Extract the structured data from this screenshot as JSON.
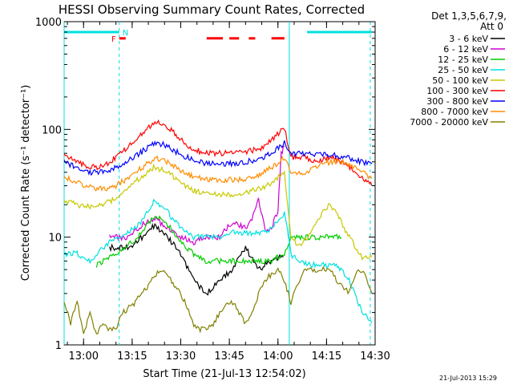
{
  "chart_data": {
    "type": "line",
    "title": "HESSI Observing Summary Count Rates, Corrected",
    "xlabel": "Start Time (21-Jul-13 12:54:02)",
    "ylabel": "Corrected Count Rate (s⁻¹ detector⁻¹)",
    "y_scale": "log",
    "ylim": [
      1,
      1000
    ],
    "x_unit": "minutes after 12:54:02",
    "xlim": [
      0,
      96
    ],
    "x_tick_labels": [
      "13:00",
      "13:15",
      "13:30",
      "13:45",
      "14:00",
      "14:15",
      "14:30"
    ],
    "y_tick_labels": [
      "1",
      "10",
      "100",
      "1000"
    ],
    "grid": false,
    "legend_placement": "right",
    "legend_header": [
      "Det 1,3,5,6,7,9,",
      "Att 0"
    ],
    "timestamp": "21-Jul-2013 15:29",
    "annotations": {
      "flag_F": "F",
      "flag_N": "N"
    },
    "series": [
      {
        "name": "3 - 6 keV",
        "color": "#000000",
        "x": [
          3,
          8,
          14,
          20,
          24,
          28,
          32,
          36,
          40,
          44,
          48,
          52,
          56,
          60,
          64,
          68,
          70,
          74,
          78,
          82,
          86,
          88,
          92,
          95
        ],
        "y": [
          null,
          null,
          8,
          8,
          10,
          13,
          10,
          7,
          4,
          3,
          4,
          5,
          8,
          5,
          6,
          7,
          null,
          null,
          null,
          null,
          null,
          null,
          null,
          null
        ]
      },
      {
        "name": "6 - 12 keV",
        "color": "#d000d0",
        "x": [
          14,
          20,
          24,
          28,
          32,
          36,
          40,
          44,
          48,
          52,
          56,
          58,
          60,
          62,
          64,
          66,
          67,
          68
        ],
        "y": [
          10,
          10,
          13,
          15,
          12,
          10,
          9,
          10,
          10,
          14,
          12,
          15,
          22,
          12,
          12,
          18,
          60,
          70
        ]
      },
      {
        "name": "12 - 25 keV",
        "color": "#00cc00",
        "x": [
          3,
          8,
          10,
          14,
          20,
          24,
          28,
          32,
          36,
          40,
          44,
          48,
          52,
          56,
          60,
          64,
          68,
          70,
          74,
          78,
          82,
          86,
          92,
          95
        ],
        "y": [
          null,
          null,
          5.5,
          6.5,
          8.5,
          11,
          16,
          13,
          9,
          7,
          6,
          6,
          6,
          6,
          6,
          6,
          7,
          10,
          10,
          10,
          10,
          10,
          null,
          null
        ]
      },
      {
        "name": "25 - 50 keV",
        "color": "#00e0e0",
        "x": [
          0,
          4,
          8,
          12,
          16,
          20,
          24,
          28,
          32,
          36,
          40,
          44,
          48,
          52,
          56,
          60,
          64,
          68,
          70,
          72,
          76,
          80,
          84,
          88,
          92,
          95
        ],
        "y": [
          7,
          7,
          6,
          8,
          10,
          11,
          14,
          22,
          17,
          12,
          10,
          10,
          10,
          11,
          11,
          11,
          12,
          17,
          7,
          6,
          5.5,
          5.5,
          5.5,
          4,
          2,
          1.6
        ]
      },
      {
        "name": "50 - 100 keV",
        "color": "#c8c800",
        "x": [
          0,
          4,
          8,
          12,
          16,
          20,
          24,
          28,
          32,
          36,
          40,
          44,
          48,
          52,
          56,
          60,
          64,
          68,
          70,
          72,
          74,
          76,
          78,
          80,
          82,
          84,
          86,
          88,
          90,
          92,
          95
        ],
        "y": [
          22,
          20,
          19,
          20,
          23,
          30,
          37,
          45,
          40,
          32,
          27,
          25,
          25,
          25,
          26,
          28,
          32,
          40,
          10,
          8.5,
          9,
          11,
          14,
          18,
          20,
          17,
          13,
          10,
          8,
          6.5,
          6.5
        ]
      },
      {
        "name": "100 - 300 keV",
        "color": "#ff0000",
        "x": [
          0,
          4,
          8,
          12,
          16,
          20,
          24,
          28,
          32,
          36,
          40,
          44,
          48,
          52,
          56,
          60,
          64,
          68,
          70,
          74,
          78,
          82,
          86,
          90,
          92,
          95
        ],
        "y": [
          60,
          50,
          45,
          45,
          55,
          70,
          90,
          120,
          105,
          80,
          65,
          60,
          60,
          60,
          62,
          65,
          80,
          105,
          55,
          55,
          50,
          55,
          50,
          40,
          35,
          30
        ]
      },
      {
        "name": "300 - 800 keV",
        "color": "#0000ff",
        "x": [
          0,
          4,
          8,
          12,
          16,
          20,
          24,
          28,
          32,
          36,
          40,
          44,
          48,
          52,
          56,
          60,
          64,
          68,
          70,
          74,
          78,
          82,
          86,
          90,
          92,
          95
        ],
        "y": [
          50,
          44,
          40,
          40,
          44,
          52,
          62,
          76,
          70,
          58,
          52,
          48,
          48,
          48,
          50,
          52,
          60,
          75,
          60,
          60,
          58,
          58,
          56,
          52,
          50,
          48
        ]
      },
      {
        "name": "800 - 7000 keV",
        "color": "#ff8c00",
        "x": [
          0,
          4,
          8,
          12,
          16,
          20,
          24,
          28,
          32,
          36,
          40,
          44,
          48,
          52,
          56,
          60,
          64,
          68,
          70,
          74,
          78,
          82,
          86,
          88,
          90,
          92,
          95
        ],
        "y": [
          36,
          32,
          29,
          28,
          30,
          36,
          44,
          55,
          50,
          42,
          36,
          34,
          34,
          34,
          35,
          38,
          44,
          55,
          40,
          40,
          45,
          50,
          50,
          48,
          44,
          40,
          35
        ]
      },
      {
        "name": "7000 - 20000 keV",
        "color": "#808000",
        "x": [
          0,
          2,
          4,
          6,
          8,
          10,
          12,
          14,
          16,
          18,
          20,
          22,
          24,
          26,
          28,
          30,
          32,
          34,
          36,
          38,
          40,
          42,
          44,
          46,
          48,
          50,
          52,
          54,
          56,
          58,
          60,
          62,
          64,
          66,
          68,
          70,
          72,
          74,
          76,
          78,
          80,
          82,
          84,
          86,
          88,
          90,
          92,
          95
        ],
        "y": [
          2.5,
          1.6,
          2.5,
          1.3,
          2,
          1.2,
          1.6,
          1.4,
          1.4,
          2,
          2.2,
          2.5,
          3,
          3.5,
          4.5,
          5,
          4.5,
          3.5,
          3,
          2.2,
          1.5,
          1.4,
          1.4,
          1.5,
          2,
          2.5,
          2.5,
          2,
          1.6,
          2,
          3,
          4,
          4.5,
          5,
          4,
          2.5,
          3.5,
          5,
          5,
          5,
          5,
          5,
          4,
          3.5,
          3,
          4.5,
          5,
          3
        ]
      }
    ],
    "attenuator_state_bars": {
      "color": "#00e0e0",
      "segments": [
        [
          0,
          17
        ],
        [
          75,
          95
        ]
      ],
      "level": 800
    },
    "flag_bars": {
      "color": "#ff0000",
      "segments": [
        [
          17,
          19
        ],
        [
          44,
          49
        ],
        [
          51,
          54
        ],
        [
          57,
          59
        ],
        [
          64,
          68
        ]
      ],
      "level": 700
    },
    "vertical_markers": {
      "solid": [
        0,
        69.5
      ],
      "dashed": [
        17,
        94.5
      ]
    }
  }
}
